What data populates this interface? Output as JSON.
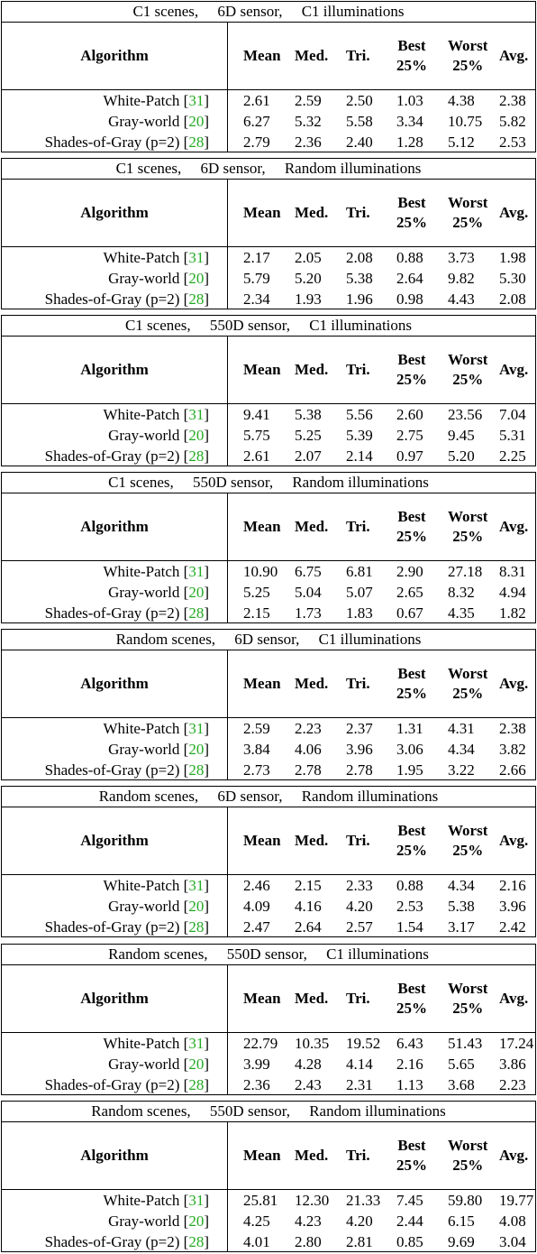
{
  "headers": {
    "algorithm": "Algorithm",
    "mean": "Mean",
    "med": "Med.",
    "tri": "Tri.",
    "best_line1": "Best",
    "best_line2": "25%",
    "worst_line1": "Worst",
    "worst_line2": "25%",
    "avg": "Avg."
  },
  "algorithms": [
    {
      "name": "White-Patch",
      "ref": "31"
    },
    {
      "name": "Gray-world",
      "ref": "20"
    },
    {
      "name": "Shades-of-Gray (p=2)",
      "ref": "28"
    }
  ],
  "tables": [
    {
      "caption": "C1 scenes,     6D sensor,     C1 illuminations",
      "rows": [
        [
          "2.61",
          "2.59",
          "2.50",
          "1.03",
          "4.38",
          "2.38"
        ],
        [
          "6.27",
          "5.32",
          "5.58",
          "3.34",
          "10.75",
          "5.82"
        ],
        [
          "2.79",
          "2.36",
          "2.40",
          "1.28",
          "5.12",
          "2.53"
        ]
      ]
    },
    {
      "caption": "C1 scenes,     6D sensor,     Random illuminations",
      "rows": [
        [
          "2.17",
          "2.05",
          "2.08",
          "0.88",
          "3.73",
          "1.98"
        ],
        [
          "5.79",
          "5.20",
          "5.38",
          "2.64",
          "9.82",
          "5.30"
        ],
        [
          "2.34",
          "1.93",
          "1.96",
          "0.98",
          "4.43",
          "2.08"
        ]
      ]
    },
    {
      "caption": "C1 scenes,     550D sensor,     C1 illuminations",
      "rows": [
        [
          "9.41",
          "5.38",
          "5.56",
          "2.60",
          "23.56",
          "7.04"
        ],
        [
          "5.75",
          "5.25",
          "5.39",
          "2.75",
          "9.45",
          "5.31"
        ],
        [
          "2.61",
          "2.07",
          "2.14",
          "0.97",
          "5.20",
          "2.25"
        ]
      ]
    },
    {
      "caption": "C1 scenes,     550D sensor,     Random illuminations",
      "rows": [
        [
          "10.90",
          "6.75",
          "6.81",
          "2.90",
          "27.18",
          "8.31"
        ],
        [
          "5.25",
          "5.04",
          "5.07",
          "2.65",
          "8.32",
          "4.94"
        ],
        [
          "2.15",
          "1.73",
          "1.83",
          "0.67",
          "4.35",
          "1.82"
        ]
      ]
    },
    {
      "caption": "Random scenes,     6D sensor,     C1 illuminations",
      "rows": [
        [
          "2.59",
          "2.23",
          "2.37",
          "1.31",
          "4.31",
          "2.38"
        ],
        [
          "3.84",
          "4.06",
          "3.96",
          "3.06",
          "4.34",
          "3.82"
        ],
        [
          "2.73",
          "2.78",
          "2.78",
          "1.95",
          "3.22",
          "2.66"
        ]
      ]
    },
    {
      "caption": "Random scenes,     6D sensor,     Random illuminations",
      "rows": [
        [
          "2.46",
          "2.15",
          "2.33",
          "0.88",
          "4.34",
          "2.16"
        ],
        [
          "4.09",
          "4.16",
          "4.20",
          "2.53",
          "5.38",
          "3.96"
        ],
        [
          "2.47",
          "2.64",
          "2.57",
          "1.54",
          "3.17",
          "2.42"
        ]
      ]
    },
    {
      "caption": "Random scenes,     550D sensor,     C1 illuminations",
      "rows": [
        [
          "22.79",
          "10.35",
          "19.52",
          "6.43",
          "51.43",
          "17.24"
        ],
        [
          "3.99",
          "4.28",
          "4.14",
          "2.16",
          "5.65",
          "3.86"
        ],
        [
          "2.36",
          "2.43",
          "2.31",
          "1.13",
          "3.68",
          "2.23"
        ]
      ]
    },
    {
      "caption": "Random scenes,     550D sensor,     Random illuminations",
      "rows": [
        [
          "25.81",
          "12.30",
          "21.33",
          "7.45",
          "59.80",
          "19.77"
        ],
        [
          "4.25",
          "4.23",
          "4.20",
          "2.44",
          "6.15",
          "4.08"
        ],
        [
          "4.01",
          "2.80",
          "2.81",
          "0.85",
          "9.69",
          "3.04"
        ]
      ]
    }
  ]
}
